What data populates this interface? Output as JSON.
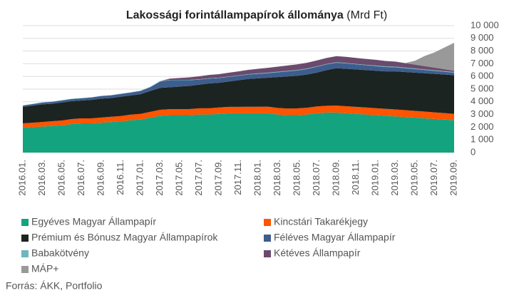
{
  "chart_data": {
    "type": "area",
    "stacked": true,
    "title": "Lakossági forintállampapírok állománya",
    "subtitle": "(Mrd Ft)",
    "source": "Forrás: ÁKK, Portfolio",
    "categories": [
      "2016.01.",
      null,
      "2016.03.",
      null,
      "2016.05.",
      null,
      "2016.07.",
      null,
      "2016.09.",
      null,
      "2016.11.",
      null,
      "2017.01.",
      null,
      "2017.03.",
      null,
      "2017.05.",
      null,
      "2017.07.",
      null,
      "2017.09.",
      null,
      "2017.11.",
      null,
      "2018.01.",
      null,
      "2018.03.",
      null,
      "2018.05.",
      null,
      "2018.07.",
      null,
      "2018.09.",
      null,
      "2018.11.",
      null,
      "2019.01.",
      null,
      "2019.03.",
      null,
      "2019.05.",
      null,
      "2019.07.",
      null,
      "2019.09."
    ],
    "ylim": [
      0,
      10000
    ],
    "yticks": [
      0,
      {
        "value": 1000,
        "label": "1 000"
      },
      {
        "value": 2000,
        "label": "2 000"
      },
      {
        "value": 3000,
        "label": "3 000"
      },
      {
        "value": 4000,
        "label": "4 000"
      },
      {
        "value": 5000,
        "label": "5 000"
      },
      {
        "value": 6000,
        "label": "6 000"
      },
      {
        "value": 7000,
        "label": "7 000"
      },
      {
        "value": 8000,
        "label": "8 000"
      },
      {
        "value": 9000,
        "label": "9 000"
      },
      {
        "value": 10000,
        "label": "10 000"
      }
    ],
    "grid": true,
    "series": [
      {
        "name": "Egyéves Magyar Állampapír",
        "color": "#14a37f",
        "values": [
          1950,
          2000,
          2050,
          2100,
          2150,
          2250,
          2300,
          2300,
          2350,
          2400,
          2450,
          2550,
          2600,
          2750,
          2900,
          2950,
          2950,
          2950,
          3000,
          3000,
          3050,
          3100,
          3100,
          3100,
          3100,
          3100,
          3000,
          2950,
          2950,
          3000,
          3100,
          3150,
          3150,
          3100,
          3050,
          3000,
          2950,
          2900,
          2850,
          2800,
          2750,
          2700,
          2650,
          2600,
          2550
        ]
      },
      {
        "name": "Kincstári Takarékjegy",
        "color": "#ff5400",
        "values": [
          350,
          350,
          360,
          370,
          380,
          390,
          400,
          400,
          410,
          420,
          430,
          440,
          450,
          460,
          470,
          470,
          480,
          480,
          490,
          490,
          500,
          500,
          500,
          510,
          510,
          520,
          520,
          520,
          530,
          530,
          540,
          540,
          550,
          550,
          550,
          550,
          550,
          550,
          550,
          540,
          540,
          530,
          520,
          510,
          500
        ]
      },
      {
        "name": "Prémium és Bónusz Magyar Állampapírok",
        "color": "#1c2421",
        "values": [
          1300,
          1350,
          1390,
          1380,
          1420,
          1410,
          1400,
          1450,
          1490,
          1480,
          1520,
          1510,
          1550,
          1640,
          1730,
          1730,
          1770,
          1820,
          1860,
          1960,
          1950,
          2000,
          2100,
          2190,
          2240,
          2280,
          2430,
          2530,
          2570,
          2620,
          2660,
          2810,
          2950,
          2950,
          2950,
          2950,
          2950,
          2950,
          3000,
          3010,
          3010,
          3020,
          3030,
          3040,
          3050
        ]
      },
      {
        "name": "Féléves Magyar Állampapír",
        "color": "#3e5d8c",
        "values": [
          100,
          120,
          140,
          150,
          160,
          170,
          180,
          190,
          200,
          210,
          220,
          230,
          250,
          300,
          500,
          550,
          500,
          450,
          400,
          380,
          370,
          360,
          350,
          350,
          350,
          360,
          380,
          400,
          420,
          440,
          460,
          450,
          430,
          420,
          400,
          380,
          360,
          340,
          320,
          300,
          280,
          260,
          240,
          220,
          200
        ]
      },
      {
        "name": "Babakötvény",
        "color": "#6db5c1",
        "values": [
          20,
          20,
          20,
          20,
          20,
          20,
          20,
          20,
          20,
          20,
          20,
          20,
          30,
          30,
          30,
          30,
          30,
          30,
          30,
          30,
          30,
          30,
          30,
          30,
          40,
          40,
          40,
          40,
          40,
          40,
          40,
          40,
          40,
          40,
          40,
          40,
          50,
          50,
          50,
          50,
          50,
          50,
          50,
          50,
          50
        ]
      },
      {
        "name": "Kétéves Állampapír",
        "color": "#6b4b6d",
        "values": [
          0,
          0,
          0,
          0,
          0,
          0,
          0,
          0,
          0,
          0,
          0,
          0,
          0,
          0,
          0,
          100,
          150,
          200,
          230,
          260,
          280,
          300,
          320,
          340,
          360,
          380,
          400,
          420,
          440,
          450,
          460,
          470,
          480,
          480,
          470,
          460,
          450,
          430,
          400,
          350,
          300,
          250,
          200,
          150,
          100
        ]
      },
      {
        "name": "MÁP+",
        "color": "#999999",
        "values": [
          0,
          0,
          0,
          0,
          0,
          0,
          0,
          0,
          0,
          0,
          0,
          0,
          0,
          0,
          0,
          0,
          0,
          0,
          0,
          0,
          0,
          0,
          0,
          0,
          0,
          0,
          0,
          0,
          0,
          0,
          0,
          0,
          0,
          0,
          0,
          0,
          0,
          0,
          0,
          0,
          300,
          800,
          1200,
          1700,
          2200
        ]
      }
    ]
  }
}
